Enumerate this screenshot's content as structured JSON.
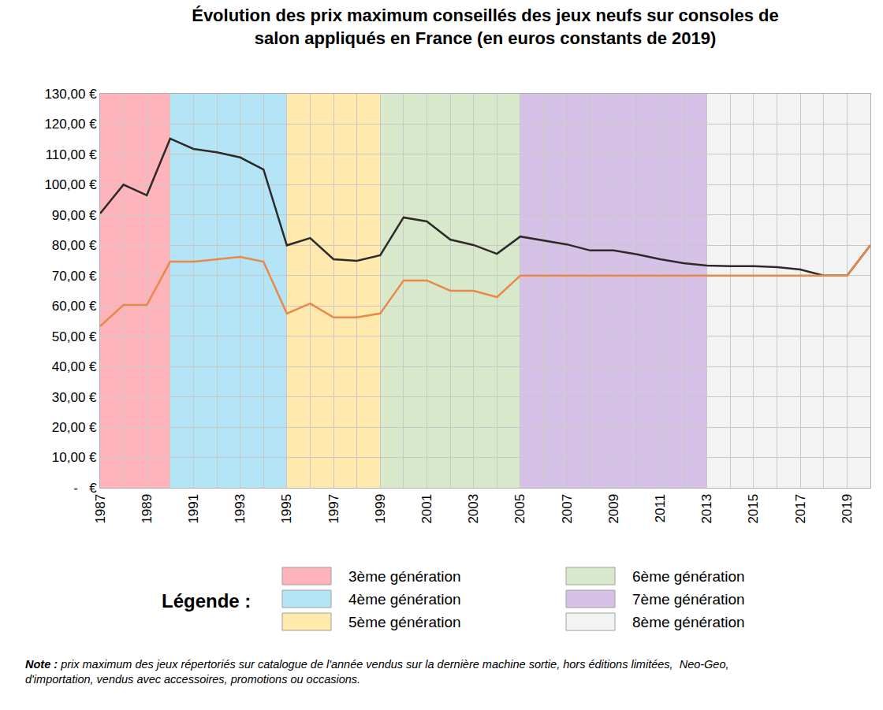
{
  "chart_data": {
    "type": "line",
    "title": [
      "Évolution des prix maximum conseillés des jeux neufs sur consoles de",
      "salon appliqués en France (en euros constants de 2019)"
    ],
    "x": [
      1987,
      1988,
      1989,
      1990,
      1991,
      1992,
      1993,
      1994,
      1995,
      1996,
      1997,
      1998,
      1999,
      2000,
      2001,
      2002,
      2003,
      2004,
      2005,
      2006,
      2007,
      2008,
      2009,
      2010,
      2011,
      2012,
      2013,
      2014,
      2015,
      2016,
      2017,
      2018,
      2019,
      2020
    ],
    "series": [
      {
        "color": "#2e2a2a",
        "values": [
          90.5,
          100,
          96.5,
          115.2,
          111.8,
          110.7,
          109,
          105,
          80,
          82.4,
          75.4,
          74.9,
          76.7,
          89.2,
          87.9,
          81.9,
          80.1,
          77.2,
          82.9,
          81.6,
          80.3,
          78.3,
          78.3,
          77,
          75.4,
          74.1,
          73.3,
          73.1,
          73.1,
          72.8,
          72,
          70,
          70,
          80
        ]
      },
      {
        "color": "#e8894a",
        "values": [
          53.3,
          60.3,
          60.3,
          74.6,
          74.6,
          75.4,
          76.2,
          74.6,
          57.5,
          60.8,
          56.2,
          56.2,
          57.5,
          68.4,
          68.4,
          65,
          65,
          62.9,
          70,
          70,
          70,
          70,
          70,
          70,
          70,
          70,
          70,
          70,
          70,
          70,
          70,
          70,
          70,
          80
        ]
      }
    ],
    "bands": [
      {
        "name": "3ème génération",
        "color": "#ffb3ba",
        "start": 1987,
        "end": 1990
      },
      {
        "name": "4ème génération",
        "color": "#b3e5f7",
        "start": 1990,
        "end": 1995
      },
      {
        "name": "5ème génération",
        "color": "#ffe9ac",
        "start": 1995,
        "end": 1999
      },
      {
        "name": "6ème génération",
        "color": "#d8e8cb",
        "start": 1999,
        "end": 2005
      },
      {
        "name": "7ème génération",
        "color": "#d5c2e6",
        "start": 2005,
        "end": 2013
      },
      {
        "name": "8ème génération",
        "color": "#f3f3f3",
        "start": 2013,
        "end": 2020
      }
    ],
    "legend_title": "Légende :",
    "note": {
      "label": "Note :",
      "lines": [
        "prix maximum des jeux répertoriés sur catalogue de l'année vendus sur la dernière machine sortie, hors éditions limitées,  Neo-Geo,",
        "d'importation, vendus avec accessoires, promotions ou occasions."
      ]
    },
    "xlim": [
      1987,
      2020
    ],
    "xticks": [
      1987,
      1989,
      1991,
      1993,
      1995,
      1997,
      1999,
      2001,
      2003,
      2005,
      2007,
      2009,
      2011,
      2013,
      2015,
      2017,
      2019
    ],
    "ylim": [
      0,
      130
    ],
    "yticks": [
      {
        "value": 0,
        "label": "-   €"
      },
      {
        "value": 10,
        "label": "10,00 €"
      },
      {
        "value": 20,
        "label": "20,00 €"
      },
      {
        "value": 30,
        "label": "30,00 €"
      },
      {
        "value": 40,
        "label": "40,00 €"
      },
      {
        "value": 50,
        "label": "50,00 €"
      },
      {
        "value": 60,
        "label": "60,00 €"
      },
      {
        "value": 70,
        "label": "70,00 €"
      },
      {
        "value": 80,
        "label": "80,00 €"
      },
      {
        "value": 90,
        "label": "90,00 €"
      },
      {
        "value": 100,
        "label": "100,00 €"
      },
      {
        "value": 110,
        "label": "110,00 €"
      },
      {
        "value": 120,
        "label": "120,00 €"
      },
      {
        "value": 130,
        "label": "130,00 €"
      }
    ],
    "grid": true
  }
}
